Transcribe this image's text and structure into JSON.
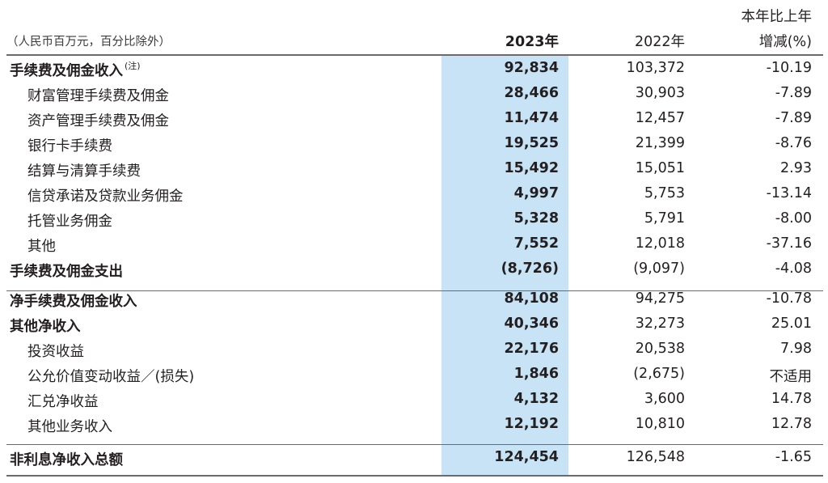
{
  "header": {
    "unit_note": "（人民币百万元，百分比除外）",
    "col_2023": "2023年",
    "col_2022": "2022年",
    "col_change_line1": "本年比上年",
    "col_change_line2": "增减(%)"
  },
  "rows": [
    {
      "label": "手续费及佣金收入",
      "note": "(注)",
      "v2023": "92,834",
      "v2022": "103,372",
      "change": "-10.19"
    },
    {
      "label": "财富管理手续费及佣金",
      "v2023": "28,466",
      "v2022": "30,903",
      "change": "-7.89"
    },
    {
      "label": "资产管理手续费及佣金",
      "v2023": "11,474",
      "v2022": "12,457",
      "change": "-7.89"
    },
    {
      "label": "银行卡手续费",
      "v2023": "19,525",
      "v2022": "21,399",
      "change": "-8.76"
    },
    {
      "label": "结算与清算手续费",
      "v2023": "15,492",
      "v2022": "15,051",
      "change": "2.93"
    },
    {
      "label": "信贷承诺及贷款业务佣金",
      "v2023": "4,997",
      "v2022": "5,753",
      "change": "-13.14"
    },
    {
      "label": "托管业务佣金",
      "v2023": "5,328",
      "v2022": "5,791",
      "change": "-8.00"
    },
    {
      "label": "其他",
      "v2023": "7,552",
      "v2022": "12,018",
      "change": "-37.16"
    },
    {
      "label": "手续费及佣金支出",
      "v2023": "(8,726)",
      "v2022": "(9,097)",
      "change": "-4.08"
    },
    {
      "label": "净手续费及佣金收入",
      "v2023": "84,108",
      "v2022": "94,275",
      "change": "-10.78"
    },
    {
      "label": "其他净收入",
      "v2023": "40,346",
      "v2022": "32,273",
      "change": "25.01"
    },
    {
      "label": "投资收益",
      "v2023": "22,176",
      "v2022": "20,538",
      "change": "7.98"
    },
    {
      "label": "公允价值变动收益／(损失)",
      "v2023": "1,846",
      "v2022": "(2,675)",
      "change": "不适用"
    },
    {
      "label": "汇兑净收益",
      "v2023": "4,132",
      "v2022": "3,600",
      "change": "14.78"
    },
    {
      "label": "其他业务收入",
      "v2023": "12,192",
      "v2022": "10,810",
      "change": "12.78"
    },
    {
      "label": "非利息净收入总额",
      "v2023": "124,454",
      "v2022": "126,548",
      "change": "-1.65"
    }
  ]
}
